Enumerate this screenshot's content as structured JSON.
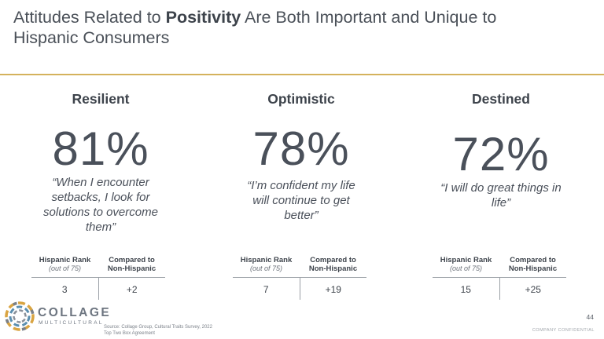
{
  "title": {
    "before": "Attitudes Related to ",
    "emphasis": "Positivity",
    "after": " Are Both Important and Unique to Hispanic Consumers"
  },
  "columns": [
    {
      "heading": "Resilient",
      "percent": "81%",
      "quote": "“When I encounter setbacks, I look for solutions to overcome them”",
      "rank_header": "Hispanic Rank",
      "rank_sub": "(out of 75)",
      "compared_header_1": "Compared to",
      "compared_header_2": "Non-Hispanic",
      "rank": "3",
      "compared": "+2"
    },
    {
      "heading": "Optimistic",
      "percent": "78%",
      "quote": "“I’m confident my life will continue to get better”",
      "rank_header": "Hispanic Rank",
      "rank_sub": "(out of 75)",
      "compared_header_1": "Compared to",
      "compared_header_2": "Non-Hispanic",
      "rank": "7",
      "compared": "+19"
    },
    {
      "heading": "Destined",
      "percent": "72%",
      "quote": "“I will do great things in life”",
      "rank_header": "Hispanic Rank",
      "rank_sub": "(out of 75)",
      "compared_header_1": "Compared to",
      "compared_header_2": "Non-Hispanic",
      "rank": "15",
      "compared": "+25"
    }
  ],
  "logo": {
    "word": "COLLAGE",
    "sub": "MULTICULTURAL",
    "icon": "collage-ring-logo-icon"
  },
  "footer": {
    "source_line_1": "Source: Collage Group, Cultural Traits Survey, 2022",
    "source_line_2": "Top Two Box Agreement",
    "page_number": "44",
    "confidential": "COMPANY CONFIDENTIAL"
  },
  "colors": {
    "divider": "#d4b25c",
    "text": "#3f4650"
  }
}
